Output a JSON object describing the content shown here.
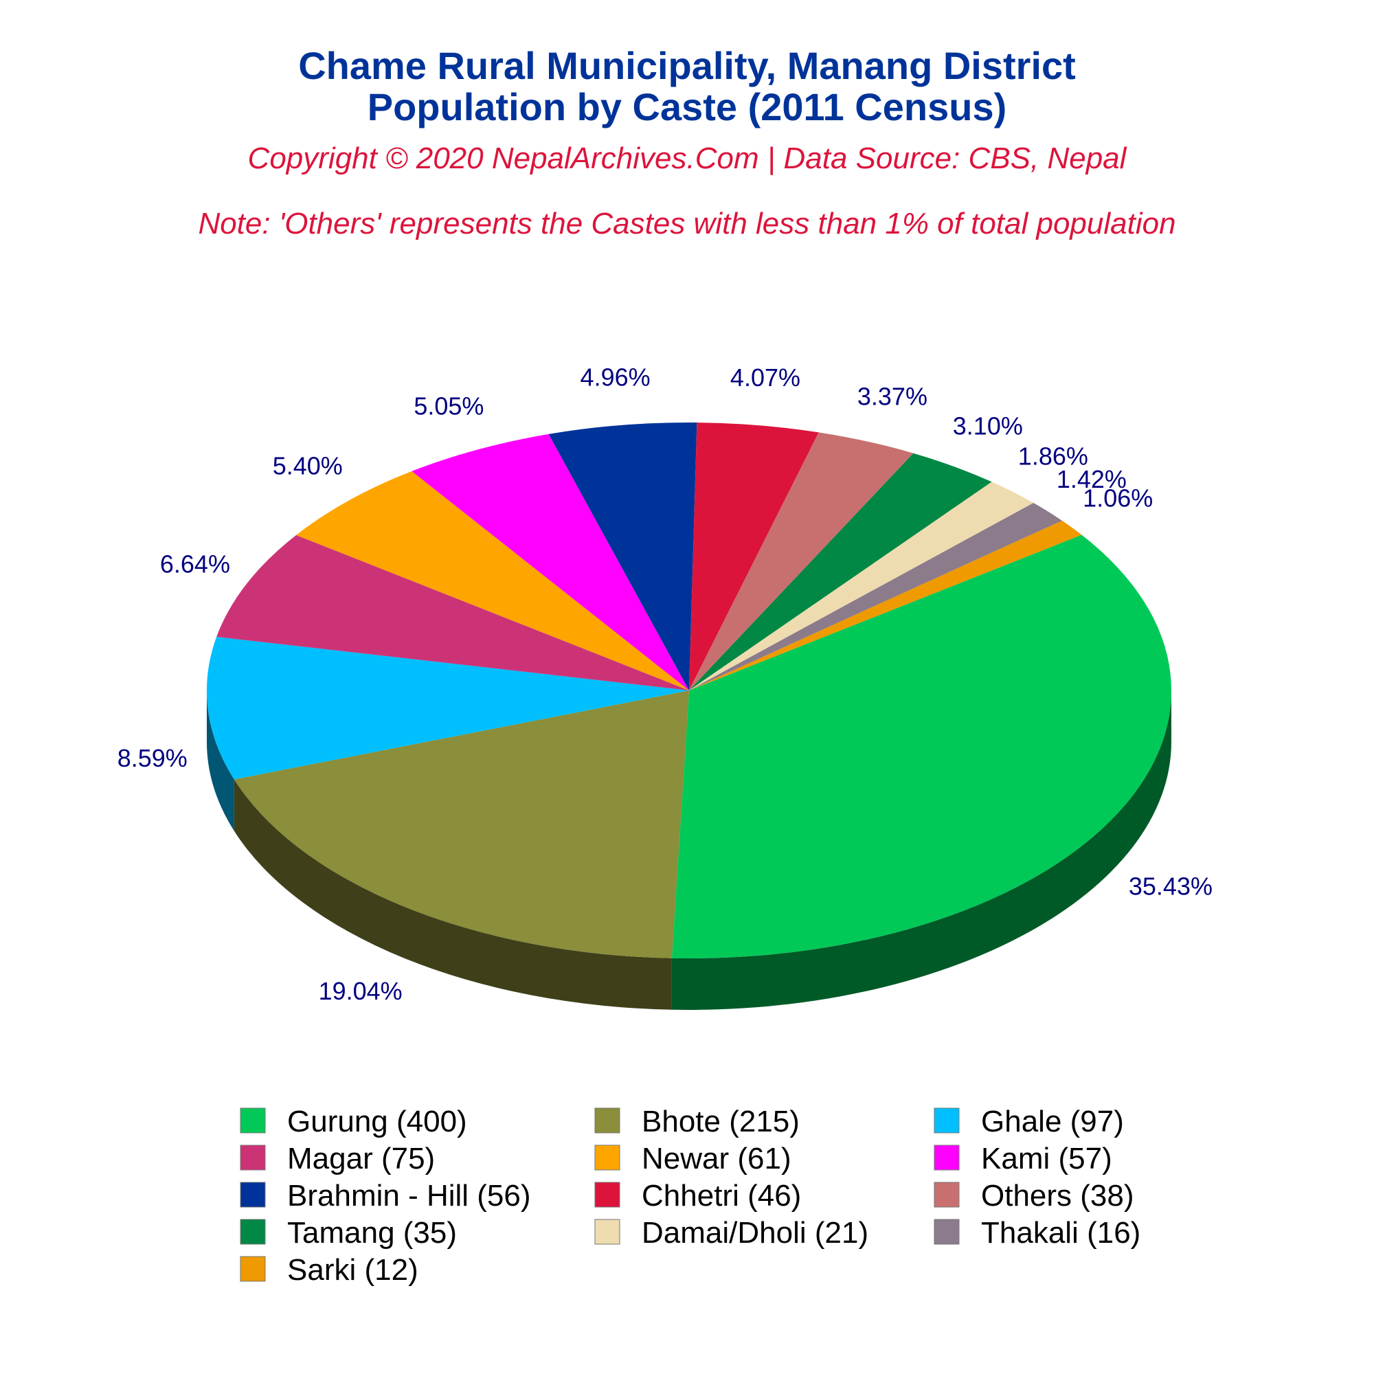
{
  "chart_data": {
    "type": "pie",
    "title_line1": "Chame Rural Municipality, Manang District",
    "title_line2": "Population by Caste (2011 Census)",
    "subtitle": "Copyright © 2020 NepalArchives.Com | Data Source: CBS, Nepal",
    "note": "Note: 'Others' represents the Castes with less than 1% of total population",
    "slices": [
      {
        "label": "Gurung (400)",
        "value": 400,
        "percent": "35.43%",
        "color": "#00C957"
      },
      {
        "label": "Bhote (215)",
        "value": 215,
        "percent": "19.04%",
        "color": "#8B8E3A"
      },
      {
        "label": "Ghale (97)",
        "value": 97,
        "percent": "8.59%",
        "color": "#00BFFF"
      },
      {
        "label": "Magar (75)",
        "value": 75,
        "percent": "6.64%",
        "color": "#CC3377"
      },
      {
        "label": "Newar (61)",
        "value": 61,
        "percent": "5.40%",
        "color": "#FFA500"
      },
      {
        "label": "Kami (57)",
        "value": 57,
        "percent": "5.05%",
        "color": "#FF00FF"
      },
      {
        "label": "Brahmin - Hill (56)",
        "value": 56,
        "percent": "4.96%",
        "color": "#003399"
      },
      {
        "label": "Chhetri (46)",
        "value": 46,
        "percent": "4.07%",
        "color": "#DC143C"
      },
      {
        "label": "Others (38)",
        "value": 38,
        "percent": "3.37%",
        "color": "#C87070"
      },
      {
        "label": "Tamang (35)",
        "value": 35,
        "percent": "3.10%",
        "color": "#008844"
      },
      {
        "label": "Damai/Dholi (21)",
        "value": 21,
        "percent": "1.86%",
        "color": "#EEDCB0"
      },
      {
        "label": "Thakali (16)",
        "value": 16,
        "percent": "1.42%",
        "color": "#8B7B8B"
      },
      {
        "label": "Sarki (12)",
        "value": 12,
        "percent": "1.06%",
        "color": "#EE9A00"
      }
    ],
    "legend_position": "bottom"
  }
}
